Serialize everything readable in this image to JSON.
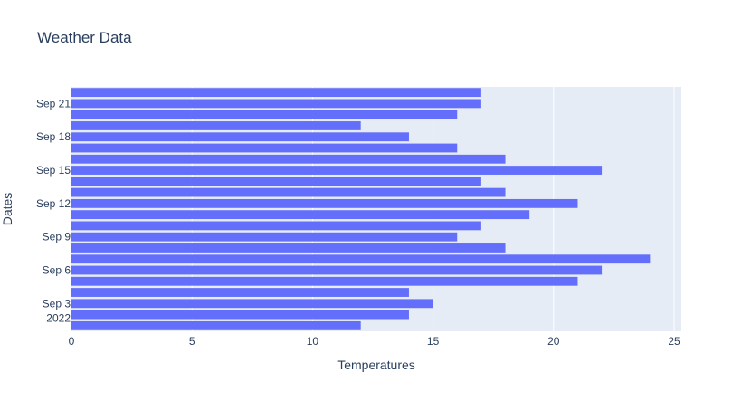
{
  "chart_data": {
    "type": "bar",
    "orientation": "horizontal",
    "title": "Weather Data",
    "xlabel": "Temperatures",
    "ylabel": "Dates",
    "xlim": [
      0,
      25.3
    ],
    "x_ticks": [
      0,
      5,
      10,
      15,
      20,
      25
    ],
    "x_tick_labels": [
      "0",
      "5",
      "10",
      "15",
      "20",
      "25"
    ],
    "y_tick_labels": [
      {
        "date": "2022-09-21",
        "label": "Sep 21"
      },
      {
        "date": "2022-09-18",
        "label": "Sep 18"
      },
      {
        "date": "2022-09-15",
        "label": "Sep 15"
      },
      {
        "date": "2022-09-12",
        "label": "Sep 12"
      },
      {
        "date": "2022-09-09",
        "label": "Sep 9"
      },
      {
        "date": "2022-09-06",
        "label": "Sep 6"
      },
      {
        "date": "2022-09-03",
        "label": "Sep 3"
      }
    ],
    "y_year_label": "2022",
    "categories": [
      "2022-09-01",
      "2022-09-02",
      "2022-09-03",
      "2022-09-04",
      "2022-09-05",
      "2022-09-06",
      "2022-09-07",
      "2022-09-08",
      "2022-09-09",
      "2022-09-10",
      "2022-09-11",
      "2022-09-12",
      "2022-09-13",
      "2022-09-14",
      "2022-09-15",
      "2022-09-16",
      "2022-09-17",
      "2022-09-18",
      "2022-09-19",
      "2022-09-20",
      "2022-09-21",
      "2022-09-22"
    ],
    "values": [
      12,
      14,
      15,
      14,
      21,
      22,
      24,
      18,
      16,
      17,
      19,
      21,
      18,
      17,
      22,
      18,
      16,
      14,
      12,
      16,
      17,
      17
    ],
    "grid": true,
    "bar_color": "#636efa",
    "plot_bg": "#e5ecf6",
    "text_color": "#2a3f5f"
  }
}
